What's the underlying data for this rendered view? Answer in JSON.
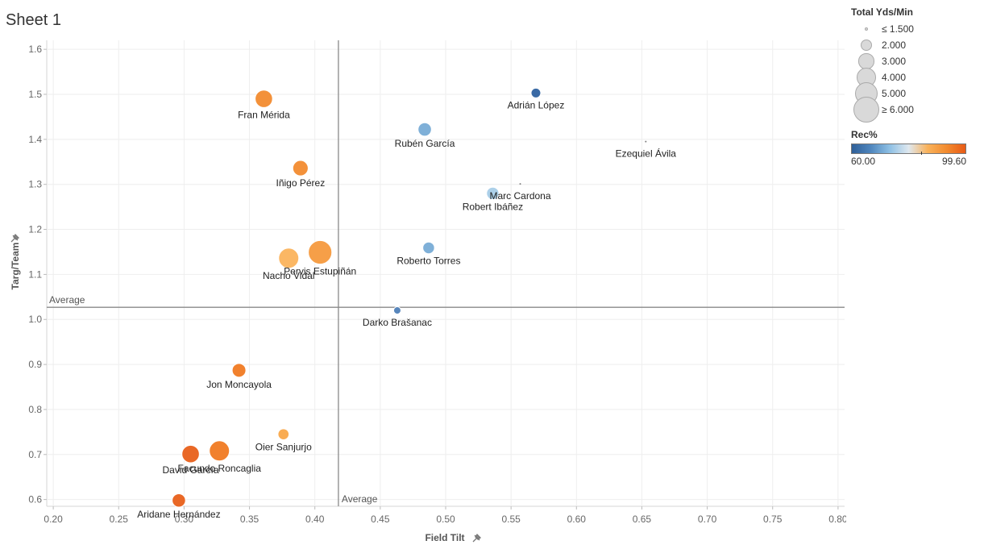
{
  "sheet": {
    "title": "Sheet 1"
  },
  "legend": {
    "size_title": "Total Yds/Min",
    "size_items": [
      {
        "label": "≤ 1.500",
        "value": 1.5
      },
      {
        "label": "2.000",
        "value": 2.0
      },
      {
        "label": "3.000",
        "value": 3.0
      },
      {
        "label": "4.000",
        "value": 4.0
      },
      {
        "label": "5.000",
        "value": 5.0
      },
      {
        "label": "≥ 6.000",
        "value": 6.0
      }
    ],
    "color_title": "Rec%",
    "color_min_label": "60.00",
    "color_max_label": "99.60",
    "color_min": 60.0,
    "color_max": 99.6
  },
  "chart_data": {
    "type": "scatter",
    "xlabel": "Field Tilt",
    "ylabel": "Targ/Team",
    "xlim": [
      0.195,
      0.805
    ],
    "ylim": [
      0.585,
      1.62
    ],
    "x_ticks": [
      "0.20",
      "0.25",
      "0.30",
      "0.35",
      "0.40",
      "0.45",
      "0.50",
      "0.55",
      "0.60",
      "0.65",
      "0.70",
      "0.75",
      "0.80"
    ],
    "y_ticks": [
      "0.6",
      "0.7",
      "0.8",
      "0.9",
      "1.0",
      "1.1",
      "1.2",
      "1.3",
      "1.4",
      "1.5",
      "1.6"
    ],
    "reference_lines": {
      "x_average": 0.418,
      "y_average": 1.027,
      "x_label": "Average",
      "y_label": "Average"
    },
    "grid": true,
    "points": [
      {
        "name": "Fran Mérida",
        "x": 0.361,
        "y": 1.49,
        "size": 4.2,
        "color": "#f28b2f"
      },
      {
        "name": "Adrián López",
        "x": 0.569,
        "y": 1.503,
        "size": 1.9,
        "color": "#2f62a0"
      },
      {
        "name": "Rubén García",
        "x": 0.484,
        "y": 1.422,
        "size": 3.0,
        "color": "#78acd6"
      },
      {
        "name": "Ezequiel Ávila",
        "x": 0.653,
        "y": 1.395,
        "size": 0.2,
        "color": "#777777"
      },
      {
        "name": "Iñigo Pérez",
        "x": 0.389,
        "y": 1.336,
        "size": 3.6,
        "color": "#f28b2f"
      },
      {
        "name": "Marc Cardona",
        "x": 0.557,
        "y": 1.301,
        "size": 0.2,
        "color": "#777777"
      },
      {
        "name": "Robert Ibáñez",
        "x": 0.536,
        "y": 1.28,
        "size": 2.7,
        "color": "#a8cde8"
      },
      {
        "name": "Roberto Torres",
        "x": 0.487,
        "y": 1.159,
        "size": 2.5,
        "color": "#78acd6"
      },
      {
        "name": "Pervis Estupiñán",
        "x": 0.404,
        "y": 1.149,
        "size": 6.0,
        "color": "#f59a3e"
      },
      {
        "name": "Nacho Vidal",
        "x": 0.38,
        "y": 1.136,
        "size": 5.0,
        "color": "#fbb35c"
      },
      {
        "name": "Darko Brašanac",
        "x": 0.463,
        "y": 1.02,
        "size": 1.2,
        "color": "#4f7fb8"
      },
      {
        "name": "Jon Moncayola",
        "x": 0.342,
        "y": 0.887,
        "size": 3.1,
        "color": "#f07a22"
      },
      {
        "name": "Oier Sanjurjo",
        "x": 0.376,
        "y": 0.745,
        "size": 2.3,
        "color": "#f9a84a"
      },
      {
        "name": "Facundo Roncaglia",
        "x": 0.327,
        "y": 0.708,
        "size": 5.0,
        "color": "#f07a22"
      },
      {
        "name": "David García",
        "x": 0.305,
        "y": 0.701,
        "size": 4.2,
        "color": "#e8601a"
      },
      {
        "name": "Aridane Hernández",
        "x": 0.296,
        "y": 0.598,
        "size": 3.0,
        "color": "#e8601a"
      }
    ]
  }
}
